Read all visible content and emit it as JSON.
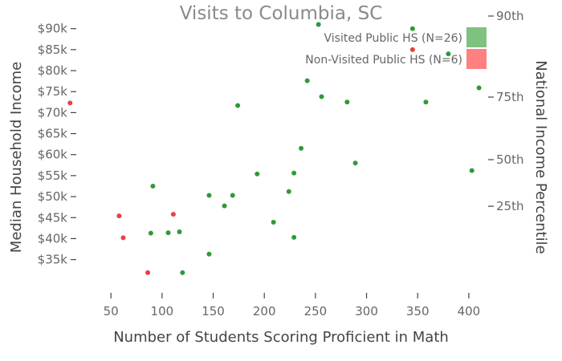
{
  "chart_data": {
    "type": "scatter",
    "title": "Visits to Columbia, SC",
    "xlabel": "Number of Students Scoring Proficient in Math",
    "ylabel": "Median Household Income",
    "y2label": "National Income Percentile",
    "xlim": [
      20,
      415
    ],
    "ylim": [
      29000,
      93000
    ],
    "x_ticks": [
      50,
      100,
      150,
      200,
      250,
      300,
      350,
      400
    ],
    "y_ticks": [
      {
        "value": 35000,
        "label": "$35k"
      },
      {
        "value": 40000,
        "label": "$40k"
      },
      {
        "value": 45000,
        "label": "$45k"
      },
      {
        "value": 50000,
        "label": "$50k"
      },
      {
        "value": 55000,
        "label": "$55k"
      },
      {
        "value": 60000,
        "label": "$60k"
      },
      {
        "value": 65000,
        "label": "$65k"
      },
      {
        "value": 70000,
        "label": "$70k"
      },
      {
        "value": 75000,
        "label": "$75k"
      },
      {
        "value": 80000,
        "label": "$80k"
      },
      {
        "value": 85000,
        "label": "$85k"
      },
      {
        "value": 90000,
        "label": "$90k"
      }
    ],
    "y2_ticks": [
      {
        "value": 47700,
        "label": "25th"
      },
      {
        "value": 58800,
        "label": "50th"
      },
      {
        "value": 73700,
        "label": "75th"
      },
      {
        "value": 95000,
        "label": "90th"
      }
    ],
    "grid": false,
    "legend_position": "top-right",
    "series": [
      {
        "name": "Visited Public HS (N=26)",
        "color": "#2e9a38",
        "legend_color": "#7fc27f",
        "points": [
          [
            253,
            91000
          ],
          [
            345,
            90000
          ],
          [
            380,
            84000
          ],
          [
            242,
            77600
          ],
          [
            256,
            73800
          ],
          [
            281,
            72500
          ],
          [
            358,
            72500
          ],
          [
            410,
            75900
          ],
          [
            174,
            71700
          ],
          [
            236,
            61500
          ],
          [
            289,
            58000
          ],
          [
            403,
            56200
          ],
          [
            193,
            55400
          ],
          [
            229,
            55600
          ],
          [
            91,
            52500
          ],
          [
            224,
            51200
          ],
          [
            146,
            50300
          ],
          [
            169,
            50300
          ],
          [
            161,
            47800
          ],
          [
            209,
            43900
          ],
          [
            89,
            41300
          ],
          [
            106,
            41400
          ],
          [
            117,
            41600
          ],
          [
            229,
            40300
          ],
          [
            146,
            36300
          ],
          [
            120,
            31900
          ]
        ]
      },
      {
        "name": "Non-Visited Public HS (N=6)",
        "color": "#e8403f",
        "legend_color": "#ff8080",
        "points": [
          [
            10,
            72300
          ],
          [
            345,
            85000
          ],
          [
            58,
            45400
          ],
          [
            111,
            45800
          ],
          [
            62,
            40200
          ],
          [
            86,
            31900
          ]
        ]
      }
    ]
  }
}
